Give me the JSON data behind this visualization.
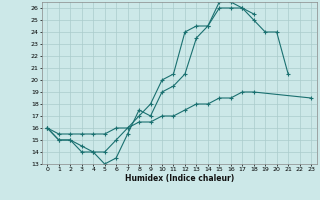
{
  "title": "",
  "xlabel": "Humidex (Indice chaleur)",
  "background_color": "#cce8e8",
  "grid_color": "#aacccc",
  "line_color": "#1a7070",
  "xlim": [
    -0.5,
    23.5
  ],
  "ylim": [
    13,
    26.5
  ],
  "xticks": [
    0,
    1,
    2,
    3,
    4,
    5,
    6,
    7,
    8,
    9,
    10,
    11,
    12,
    13,
    14,
    15,
    16,
    17,
    18,
    19,
    20,
    21,
    22,
    23
  ],
  "yticks": [
    13,
    14,
    15,
    16,
    17,
    18,
    19,
    20,
    21,
    22,
    23,
    24,
    25,
    26
  ],
  "line1_x": [
    0,
    1,
    2,
    3,
    4,
    5,
    6,
    7,
    8,
    9,
    10,
    11,
    12,
    13,
    14,
    15,
    16,
    17,
    18
  ],
  "line1_y": [
    16,
    15,
    15,
    14,
    14,
    13,
    13.5,
    15.5,
    17.5,
    17,
    19,
    19.5,
    20.5,
    23.5,
    24.5,
    26.5,
    26.5,
    26,
    25.5
  ],
  "line2_x": [
    0,
    1,
    2,
    3,
    4,
    5,
    6,
    7,
    8,
    9,
    10,
    11,
    12,
    13,
    14,
    15,
    16,
    17,
    18,
    19,
    20,
    21
  ],
  "line2_y": [
    16,
    15,
    15,
    14.5,
    14,
    14,
    15,
    16,
    17,
    18,
    20,
    20.5,
    24,
    24.5,
    24.5,
    26,
    26,
    26,
    25,
    24,
    24,
    20.5
  ],
  "line3_x": [
    0,
    1,
    2,
    3,
    4,
    5,
    6,
    7,
    8,
    9,
    10,
    11,
    12,
    13,
    14,
    15,
    16,
    17,
    18,
    23
  ],
  "line3_y": [
    16,
    15.5,
    15.5,
    15.5,
    15.5,
    15.5,
    16,
    16,
    16.5,
    16.5,
    17,
    17,
    17.5,
    18,
    18,
    18.5,
    18.5,
    19,
    19,
    18.5
  ]
}
